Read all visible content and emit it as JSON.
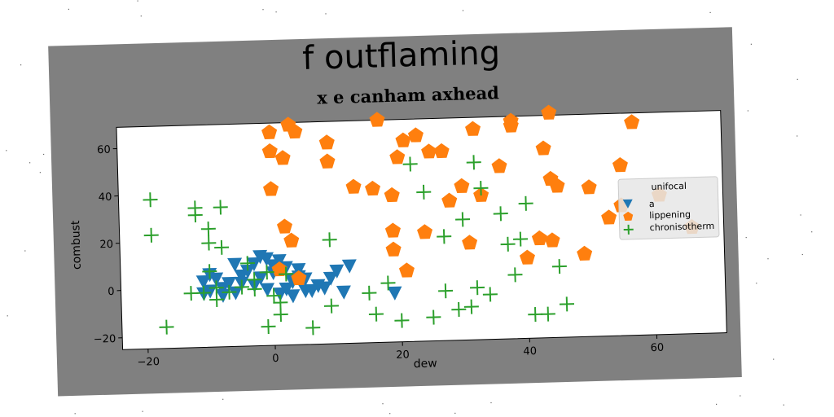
{
  "figure": {
    "title": "f outflaming",
    "subtitle": "x e canham axhead",
    "frame_color": "#808080"
  },
  "chart_data": {
    "type": "scatter",
    "title": "f outflaming",
    "subtitle": "x e canham axhead",
    "xlabel": "dew",
    "ylabel": "combust",
    "xlim": [
      -24,
      71
    ],
    "ylim": [
      -25,
      69
    ],
    "xticks": [
      -20,
      0,
      20,
      40,
      60
    ],
    "yticks": [
      -20,
      0,
      20,
      40,
      60
    ],
    "grid": false,
    "legend": {
      "title": "unifocal",
      "placement": "right"
    },
    "series": [
      {
        "name": "a",
        "marker": "triangle-down",
        "color": "#1f77b4",
        "points": [
          [
            -11,
            3
          ],
          [
            -10,
            -1
          ],
          [
            -9,
            4
          ],
          [
            -8,
            0
          ],
          [
            -7,
            2
          ],
          [
            -6,
            -2
          ],
          [
            -5,
            5
          ],
          [
            -4,
            7
          ],
          [
            -3,
            10
          ],
          [
            -2,
            4
          ],
          [
            -1,
            12
          ],
          [
            0,
            6
          ],
          [
            1,
            11
          ],
          [
            2,
            8
          ],
          [
            3,
            3
          ],
          [
            4,
            7
          ],
          [
            5,
            -2
          ],
          [
            -3,
            1
          ],
          [
            -1,
            -1
          ],
          [
            1,
            -3
          ],
          [
            -10,
            6
          ],
          [
            -8,
            -3
          ],
          [
            -5,
            2
          ],
          [
            2,
            -1
          ],
          [
            3,
            2
          ],
          [
            6,
            -2
          ],
          [
            8,
            -1
          ],
          [
            9,
            3
          ],
          [
            10,
            6
          ],
          [
            11,
            -3
          ],
          [
            12,
            8
          ],
          [
            19,
            -4
          ],
          [
            -6,
            10
          ],
          [
            -2,
            13
          ],
          [
            0,
            9
          ],
          [
            4,
            4
          ],
          [
            5,
            3
          ],
          [
            7,
            0
          ],
          [
            -11,
            -2
          ],
          [
            3,
            -4
          ]
        ]
      },
      {
        "name": "lippening",
        "marker": "pentagon",
        "color": "#ff7f0e",
        "points": [
          [
            0,
            65
          ],
          [
            3,
            68
          ],
          [
            4,
            65
          ],
          [
            0,
            57
          ],
          [
            2,
            54
          ],
          [
            9,
            60
          ],
          [
            9,
            52
          ],
          [
            17,
            69
          ],
          [
            0,
            41
          ],
          [
            13,
            41
          ],
          [
            16,
            40
          ],
          [
            19,
            37
          ],
          [
            20,
            53
          ],
          [
            21,
            60
          ],
          [
            23,
            62
          ],
          [
            25,
            55
          ],
          [
            27,
            55
          ],
          [
            32,
            64
          ],
          [
            38,
            65
          ],
          [
            38,
            67
          ],
          [
            44,
            70
          ],
          [
            43,
            55
          ],
          [
            36,
            48
          ],
          [
            30,
            40
          ],
          [
            28,
            34
          ],
          [
            33,
            36
          ],
          [
            44,
            42
          ],
          [
            45,
            39
          ],
          [
            19,
            22
          ],
          [
            24,
            21
          ],
          [
            19,
            14
          ],
          [
            21,
            5
          ],
          [
            31,
            16
          ],
          [
            40,
            9
          ],
          [
            42,
            17
          ],
          [
            44,
            16
          ],
          [
            49,
            10
          ],
          [
            50,
            38
          ],
          [
            55,
            47
          ],
          [
            57,
            65
          ],
          [
            53,
            25
          ],
          [
            55,
            30
          ],
          [
            61,
            34
          ],
          [
            66,
            20
          ],
          [
            2,
            25
          ],
          [
            3,
            19
          ],
          [
            1,
            7
          ],
          [
            4,
            3
          ]
        ]
      },
      {
        "name": "chronisotherm",
        "marker": "plus",
        "color": "#2ca02c",
        "points": [
          [
            -19,
            38
          ],
          [
            -19,
            23
          ],
          [
            -12,
            34
          ],
          [
            -12,
            31
          ],
          [
            -8,
            34
          ],
          [
            -10,
            25
          ],
          [
            -10,
            19
          ],
          [
            -8,
            17
          ],
          [
            -10,
            7
          ],
          [
            -11,
            -2
          ],
          [
            -9,
            0
          ],
          [
            -9,
            -5
          ],
          [
            -7,
            -2
          ],
          [
            -5,
            0
          ],
          [
            -3,
            -1
          ],
          [
            -3,
            3
          ],
          [
            -1,
            6
          ],
          [
            0,
            -4
          ],
          [
            1,
            -7
          ],
          [
            1,
            -12
          ],
          [
            -1,
            -17
          ],
          [
            -17,
            -16
          ],
          [
            6,
            -18
          ],
          [
            9,
            -9
          ],
          [
            9,
            19
          ],
          [
            15,
            -4
          ],
          [
            16,
            -13
          ],
          [
            18,
            0
          ],
          [
            20,
            -16
          ],
          [
            22,
            50
          ],
          [
            24,
            38
          ],
          [
            25,
            -15
          ],
          [
            27,
            -4
          ],
          [
            27,
            19
          ],
          [
            29,
            -12
          ],
          [
            30,
            26
          ],
          [
            31,
            -11
          ],
          [
            32,
            -3
          ],
          [
            32,
            50
          ],
          [
            33,
            39
          ],
          [
            34,
            -6
          ],
          [
            36,
            28
          ],
          [
            37,
            15
          ],
          [
            38,
            2
          ],
          [
            39,
            17
          ],
          [
            40,
            32
          ],
          [
            41,
            -15
          ],
          [
            43,
            -15
          ],
          [
            45,
            5
          ],
          [
            46,
            -11
          ],
          [
            -13,
            -2
          ],
          [
            2,
            5
          ],
          [
            -4,
            10
          ]
        ]
      }
    ]
  }
}
